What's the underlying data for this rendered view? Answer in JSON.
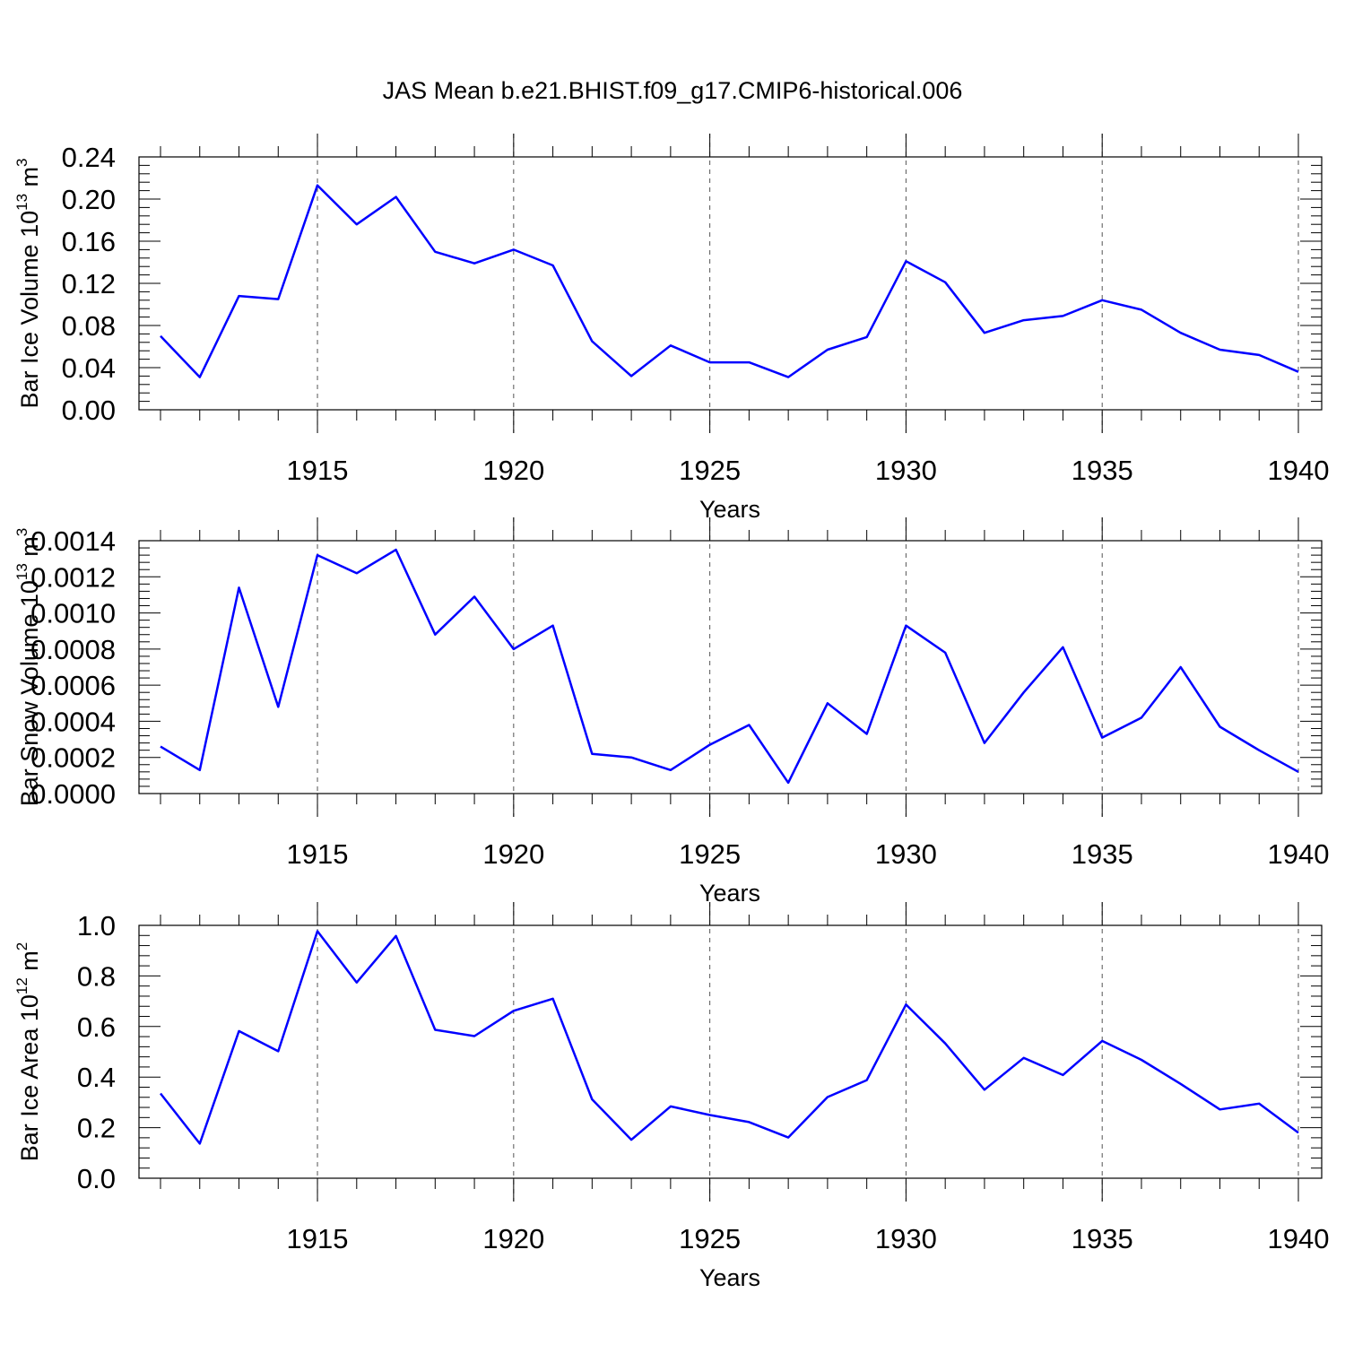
{
  "title": "JAS Mean b.e21.BHIST.f09_g17.CMIP6-historical.006",
  "colors": {
    "line": "#0000ff",
    "axis": "#000000",
    "grid": "#555555"
  },
  "chart_data": [
    {
      "type": "line",
      "ylabel": {
        "main": "Bar Ice Volume 10",
        "exp": "13",
        "unit": " m",
        "unit_exp": "3"
      },
      "xlabel": "Years",
      "xlim": [
        1911,
        1940
      ],
      "ylim": [
        0,
        0.24
      ],
      "yticks": [
        0,
        0.04,
        0.08,
        0.12,
        0.16,
        0.2,
        0.24
      ],
      "ytick_labels": [
        "0.00",
        "0.04",
        "0.08",
        "0.12",
        "0.16",
        "0.20",
        "0.24"
      ],
      "xticks": [
        1915,
        1920,
        1925,
        1930,
        1935,
        1940
      ],
      "xtick_labels": [
        "1915",
        "1920",
        "1925",
        "1930",
        "1935",
        "1940"
      ],
      "grid": "vertical-dashed",
      "series": [
        {
          "name": "JAS Mean",
          "x": [
            1911,
            1912,
            1913,
            1914,
            1915,
            1916,
            1917,
            1918,
            1919,
            1920,
            1921,
            1922,
            1923,
            1924,
            1925,
            1926,
            1927,
            1928,
            1929,
            1930,
            1931,
            1932,
            1933,
            1934,
            1935,
            1936,
            1937,
            1938,
            1939,
            1940
          ],
          "values": [
            0.07,
            0.031,
            0.108,
            0.105,
            0.213,
            0.176,
            0.202,
            0.15,
            0.139,
            0.152,
            0.137,
            0.065,
            0.032,
            0.061,
            0.045,
            0.045,
            0.031,
            0.057,
            0.069,
            0.141,
            0.121,
            0.073,
            0.085,
            0.089,
            0.104,
            0.095,
            0.073,
            0.057,
            0.052,
            0.036
          ]
        }
      ]
    },
    {
      "type": "line",
      "ylabel": {
        "main": "Bar Snow Volume 10",
        "exp": "13",
        "unit": " m",
        "unit_exp": "3"
      },
      "xlabel": "Years",
      "xlim": [
        1911,
        1940
      ],
      "ylim": [
        0,
        0.0014
      ],
      "yticks": [
        0,
        0.0002,
        0.0004,
        0.0006,
        0.0008,
        0.001,
        0.0012,
        0.0014
      ],
      "ytick_labels": [
        "0.0000",
        "0.0002",
        "0.0004",
        "0.0006",
        "0.0008",
        "0.0010",
        "0.0012",
        "0.0014"
      ],
      "xticks": [
        1915,
        1920,
        1925,
        1930,
        1935,
        1940
      ],
      "xtick_labels": [
        "1915",
        "1920",
        "1925",
        "1930",
        "1935",
        "1940"
      ],
      "grid": "vertical-dashed",
      "series": [
        {
          "name": "JAS Mean",
          "x": [
            1911,
            1912,
            1913,
            1914,
            1915,
            1916,
            1917,
            1918,
            1919,
            1920,
            1921,
            1922,
            1923,
            1924,
            1925,
            1926,
            1927,
            1928,
            1929,
            1930,
            1931,
            1932,
            1933,
            1934,
            1935,
            1936,
            1937,
            1938,
            1939,
            1940
          ],
          "values": [
            0.00026,
            0.00013,
            0.00114,
            0.00048,
            0.00132,
            0.00122,
            0.00135,
            0.00088,
            0.00109,
            0.0008,
            0.00093,
            0.00022,
            0.0002,
            0.00013,
            0.00027,
            0.00038,
            6e-05,
            0.0005,
            0.00033,
            0.00093,
            0.00078,
            0.00028,
            0.00056,
            0.00081,
            0.00031,
            0.00042,
            0.0007,
            0.00037,
            0.00024,
            0.00012
          ]
        }
      ]
    },
    {
      "type": "line",
      "ylabel": {
        "main": "Bar Ice Area 10",
        "exp": "12",
        "unit": " m",
        "unit_exp": "2"
      },
      "xlabel": "Years",
      "xlim": [
        1911,
        1940
      ],
      "ylim": [
        0,
        1.0
      ],
      "yticks": [
        0,
        0.2,
        0.4,
        0.6,
        0.8,
        1.0
      ],
      "ytick_labels": [
        "0.0",
        "0.2",
        "0.4",
        "0.6",
        "0.8",
        "1.0"
      ],
      "xticks": [
        1915,
        1920,
        1925,
        1930,
        1935,
        1940
      ],
      "xtick_labels": [
        "1915",
        "1920",
        "1925",
        "1930",
        "1935",
        "1940"
      ],
      "grid": "vertical-dashed",
      "series": [
        {
          "name": "JAS Mean",
          "x": [
            1911,
            1912,
            1913,
            1914,
            1915,
            1916,
            1917,
            1918,
            1919,
            1920,
            1921,
            1922,
            1923,
            1924,
            1925,
            1926,
            1927,
            1928,
            1929,
            1930,
            1931,
            1932,
            1933,
            1934,
            1935,
            1936,
            1937,
            1938,
            1939,
            1940
          ],
          "values": [
            0.335,
            0.137,
            0.582,
            0.502,
            0.977,
            0.774,
            0.958,
            0.587,
            0.562,
            0.662,
            0.71,
            0.312,
            0.152,
            0.284,
            0.25,
            0.222,
            0.161,
            0.321,
            0.388,
            0.687,
            0.533,
            0.35,
            0.476,
            0.408,
            0.543,
            0.468,
            0.373,
            0.272,
            0.295,
            0.18
          ]
        }
      ]
    }
  ]
}
